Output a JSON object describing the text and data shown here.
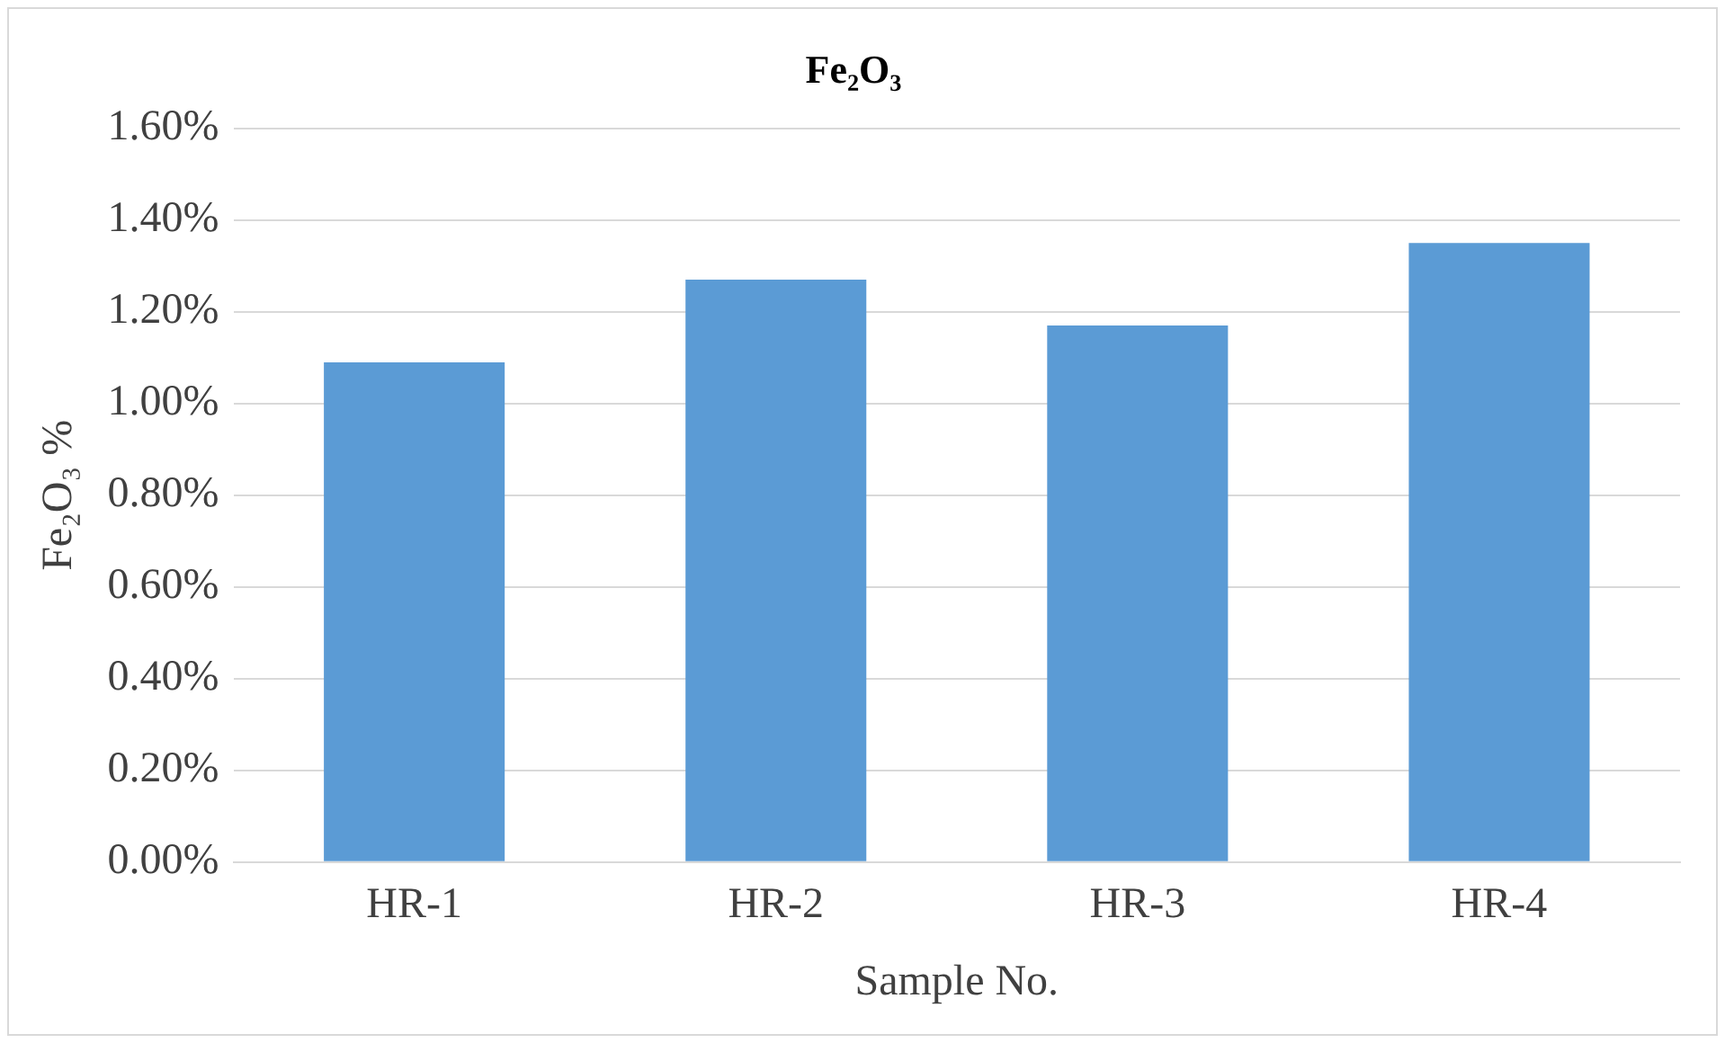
{
  "chart_data": {
    "type": "bar",
    "title": "Fe₂O₃",
    "xlabel": "Sample No.",
    "ylabel": "Fe₂O₃ %",
    "categories": [
      "HR-1",
      "HR-2",
      "HR-3",
      "HR-4"
    ],
    "values": [
      1.09,
      1.27,
      1.17,
      1.35
    ],
    "color": "#5b9bd5",
    "ylim": [
      0,
      1.6
    ],
    "yticks": [
      {
        "value": 0,
        "label": "0.00%"
      },
      {
        "value": 0.2,
        "label": "0.20%"
      },
      {
        "value": 0.4,
        "label": "0.40%"
      },
      {
        "value": 0.6,
        "label": "0.60%"
      },
      {
        "value": 0.8,
        "label": "0.80%"
      },
      {
        "value": 1.0,
        "label": "1.00%"
      },
      {
        "value": 1.2,
        "label": "1.20%"
      },
      {
        "value": 1.4,
        "label": "1.40%"
      },
      {
        "value": 1.6,
        "label": "1.60%"
      }
    ],
    "grid": "y"
  }
}
